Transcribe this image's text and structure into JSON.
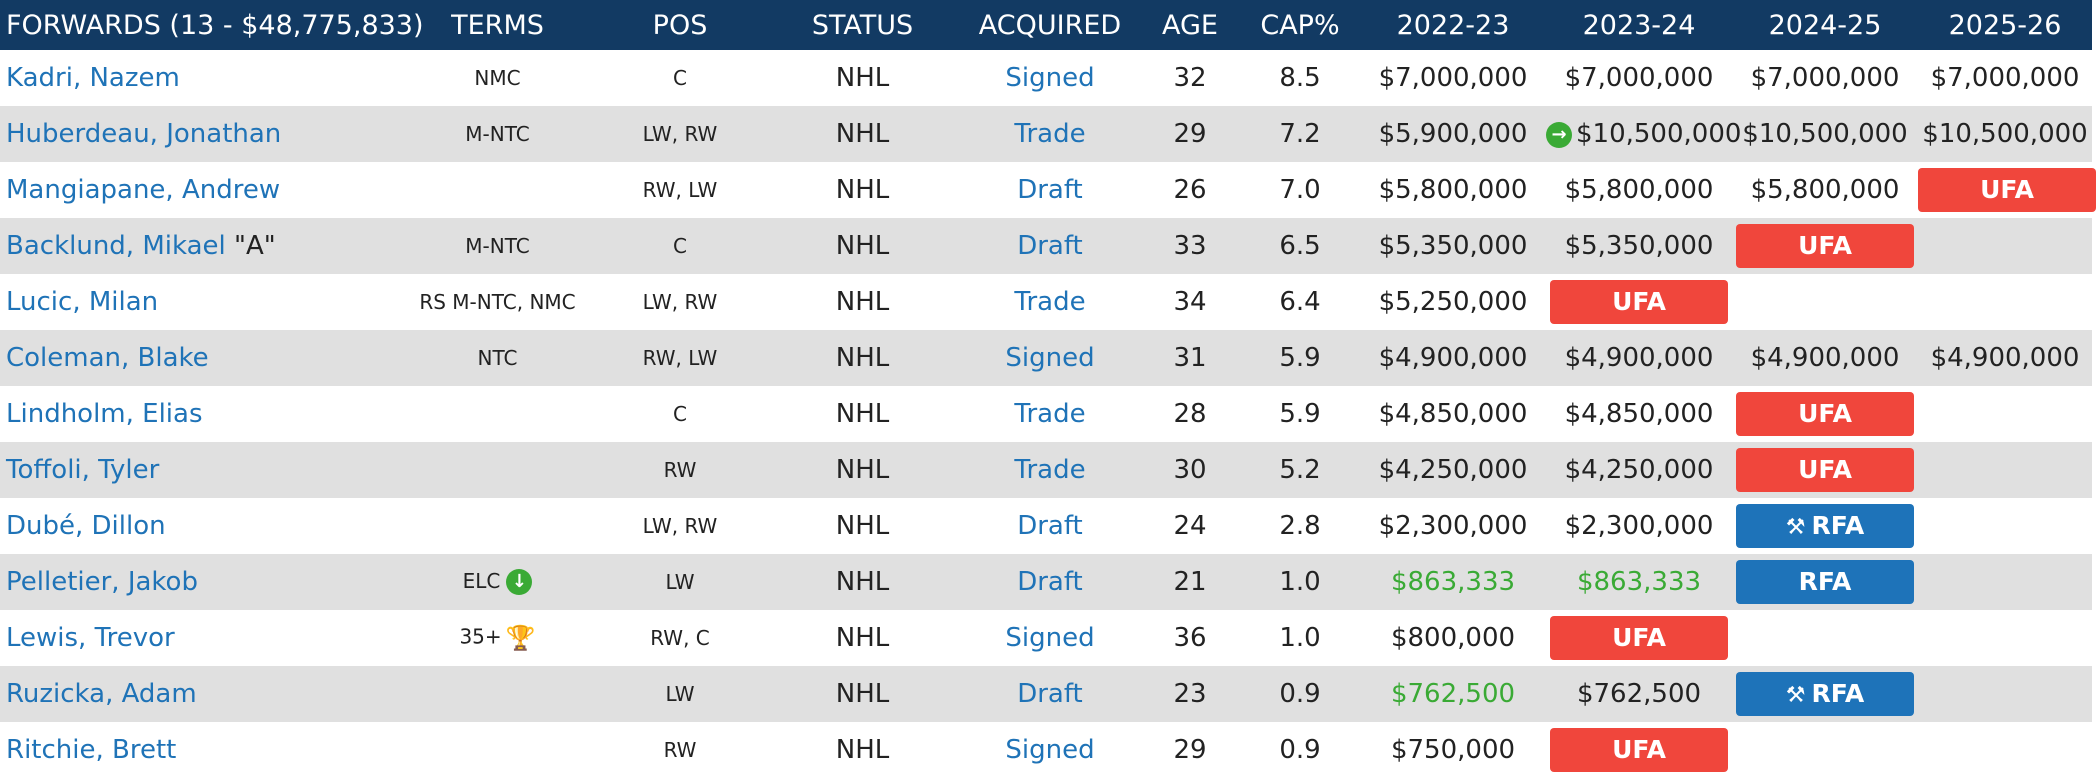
{
  "header": {
    "forwards": "FORWARDS (13 - $48,775,833)",
    "terms": "TERMS",
    "pos": "POS",
    "status": "STATUS",
    "acquired": "ACQUIRED",
    "age": "AGE",
    "cap": "CAP%",
    "y1": "2022-23",
    "y2": "2023-24",
    "y3": "2024-25",
    "y4": "2025-26"
  },
  "colors": {
    "header_bg": "#123a63",
    "link": "#1f73b7",
    "ufa": "#f0463c",
    "rfa": "#1e73b9",
    "elc_green": "#3aaa35"
  },
  "icons": {
    "arrow_right": "arrow-right-circle-icon",
    "arrow_down": "arrow-down-circle-icon",
    "trophy": "trophy-icon",
    "gavel": "gavel-icon"
  },
  "rows": [
    {
      "name": "Kadri, Nazem",
      "suffix": "",
      "terms": "NMC",
      "pos": "C",
      "status": "NHL",
      "acquired": "Signed",
      "age": "32",
      "cap": "8.5",
      "y1": "$7,000,000",
      "y2": "$7,000,000",
      "y3": "$7,000,000",
      "y4": "$7,000,000"
    },
    {
      "name": "Huberdeau, Jonathan",
      "suffix": "",
      "terms": "M-NTC",
      "pos": "LW, RW",
      "status": "NHL",
      "acquired": "Trade",
      "age": "29",
      "cap": "7.2",
      "y1": "$5,900,000",
      "y2": "$10,500,000",
      "y3": "$10,500,000",
      "y4": "$10,500,000"
    },
    {
      "name": "Mangiapane, Andrew",
      "suffix": "",
      "terms": "",
      "pos": "RW, LW",
      "status": "NHL",
      "acquired": "Draft",
      "age": "26",
      "cap": "7.0",
      "y1": "$5,800,000",
      "y2": "$5,800,000",
      "y3": "$5,800,000",
      "y4": "UFA"
    },
    {
      "name": "Backlund, Mikael",
      "suffix": "\"A\"",
      "terms": "M-NTC",
      "pos": "C",
      "status": "NHL",
      "acquired": "Draft",
      "age": "33",
      "cap": "6.5",
      "y1": "$5,350,000",
      "y2": "$5,350,000",
      "y3": "UFA",
      "y4": ""
    },
    {
      "name": "Lucic, Milan",
      "suffix": "",
      "terms": "RS M-NTC, NMC",
      "pos": "LW, RW",
      "status": "NHL",
      "acquired": "Trade",
      "age": "34",
      "cap": "6.4",
      "y1": "$5,250,000",
      "y2": "UFA",
      "y3": "",
      "y4": ""
    },
    {
      "name": "Coleman, Blake",
      "suffix": "",
      "terms": "NTC",
      "pos": "RW, LW",
      "status": "NHL",
      "acquired": "Signed",
      "age": "31",
      "cap": "5.9",
      "y1": "$4,900,000",
      "y2": "$4,900,000",
      "y3": "$4,900,000",
      "y4": "$4,900,000"
    },
    {
      "name": "Lindholm, Elias",
      "suffix": "",
      "terms": "",
      "pos": "C",
      "status": "NHL",
      "acquired": "Trade",
      "age": "28",
      "cap": "5.9",
      "y1": "$4,850,000",
      "y2": "$4,850,000",
      "y3": "UFA",
      "y4": ""
    },
    {
      "name": "Toffoli, Tyler",
      "suffix": "",
      "terms": "",
      "pos": "RW",
      "status": "NHL",
      "acquired": "Trade",
      "age": "30",
      "cap": "5.2",
      "y1": "$4,250,000",
      "y2": "$4,250,000",
      "y3": "UFA",
      "y4": ""
    },
    {
      "name": "Dubé, Dillon",
      "suffix": "",
      "terms": "",
      "pos": "LW, RW",
      "status": "NHL",
      "acquired": "Draft",
      "age": "24",
      "cap": "2.8",
      "y1": "$2,300,000",
      "y2": "$2,300,000",
      "y3": "RFA",
      "y4": ""
    },
    {
      "name": "Pelletier, Jakob",
      "suffix": "",
      "terms": "ELC",
      "pos": "LW",
      "status": "NHL",
      "acquired": "Draft",
      "age": "21",
      "cap": "1.0",
      "y1": "$863,333",
      "y2": "$863,333",
      "y3": "RFA",
      "y4": ""
    },
    {
      "name": "Lewis, Trevor",
      "suffix": "",
      "terms": "35+",
      "pos": "RW, C",
      "status": "NHL",
      "acquired": "Signed",
      "age": "36",
      "cap": "1.0",
      "y1": "$800,000",
      "y2": "UFA",
      "y3": "",
      "y4": ""
    },
    {
      "name": "Ruzicka, Adam",
      "suffix": "",
      "terms": "",
      "pos": "LW",
      "status": "NHL",
      "acquired": "Draft",
      "age": "23",
      "cap": "0.9",
      "y1": "$762,500",
      "y2": "$762,500",
      "y3": "RFA",
      "y4": ""
    },
    {
      "name": "Ritchie, Brett",
      "suffix": "",
      "terms": "",
      "pos": "RW",
      "status": "NHL",
      "acquired": "Signed",
      "age": "29",
      "cap": "0.9",
      "y1": "$750,000",
      "y2": "UFA",
      "y3": "",
      "y4": ""
    }
  ]
}
